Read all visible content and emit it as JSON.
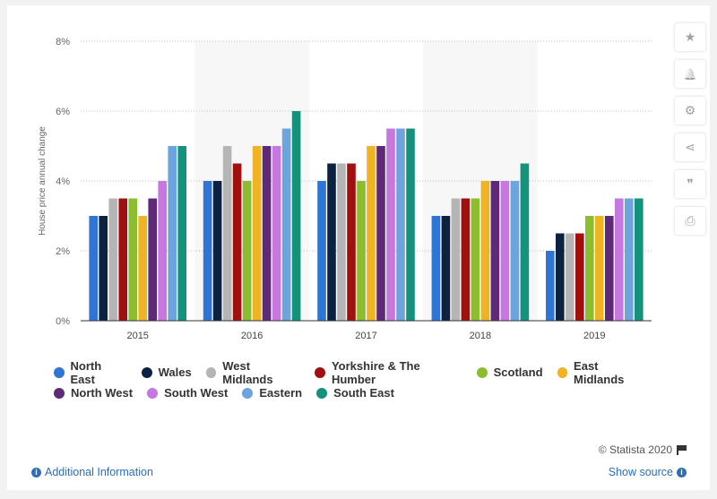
{
  "chart_data": {
    "type": "bar",
    "title": "",
    "xlabel": "",
    "ylabel": "House price annual change",
    "ylim": [
      0,
      8
    ],
    "yticks": [
      "0%",
      "2%",
      "4%",
      "6%",
      "8%"
    ],
    "categories": [
      "2015",
      "2016",
      "2017",
      "2018",
      "2019"
    ],
    "grid": true,
    "legend_position": "bottom",
    "series": [
      {
        "name": "North East",
        "color": "#2e75d6",
        "values": [
          3.0,
          4.0,
          4.0,
          3.0,
          2.0
        ]
      },
      {
        "name": "Wales",
        "color": "#0d2240",
        "values": [
          3.0,
          4.0,
          4.5,
          3.0,
          2.5
        ]
      },
      {
        "name": "West Midlands",
        "color": "#b5b5b5",
        "values": [
          3.5,
          5.0,
          4.5,
          3.5,
          2.5
        ]
      },
      {
        "name": "Yorkshire & The Humber",
        "color": "#a10f0f",
        "values": [
          3.5,
          4.5,
          4.5,
          3.5,
          2.5
        ]
      },
      {
        "name": "Scotland",
        "color": "#8bbd2e",
        "values": [
          3.5,
          4.0,
          4.0,
          3.5,
          3.0
        ]
      },
      {
        "name": "East Midlands",
        "color": "#f0b323",
        "values": [
          3.0,
          5.0,
          5.0,
          4.0,
          3.0
        ]
      },
      {
        "name": "North West",
        "color": "#5e2a78",
        "values": [
          3.5,
          5.0,
          5.0,
          4.0,
          3.0
        ]
      },
      {
        "name": "South West",
        "color": "#c678e0",
        "values": [
          4.0,
          5.0,
          5.5,
          4.0,
          3.5
        ]
      },
      {
        "name": "Eastern",
        "color": "#6ea4de",
        "values": [
          5.0,
          5.5,
          5.5,
          4.0,
          3.5
        ]
      },
      {
        "name": "South East",
        "color": "#15927c",
        "values": [
          5.0,
          6.0,
          5.5,
          4.5,
          3.5
        ]
      }
    ]
  },
  "toolbar": {
    "buttons": [
      {
        "name": "star-icon",
        "glyph": "★"
      },
      {
        "name": "bell-icon",
        "glyph": "🔔"
      },
      {
        "name": "gear-icon",
        "glyph": "⚙"
      },
      {
        "name": "share-icon",
        "glyph": "⋖"
      },
      {
        "name": "quote-icon",
        "glyph": "❞"
      },
      {
        "name": "print-icon",
        "glyph": "⎙"
      }
    ]
  },
  "footer": {
    "copyright": "© Statista 2020",
    "additional_info": "Additional Information",
    "show_source": "Show source"
  }
}
